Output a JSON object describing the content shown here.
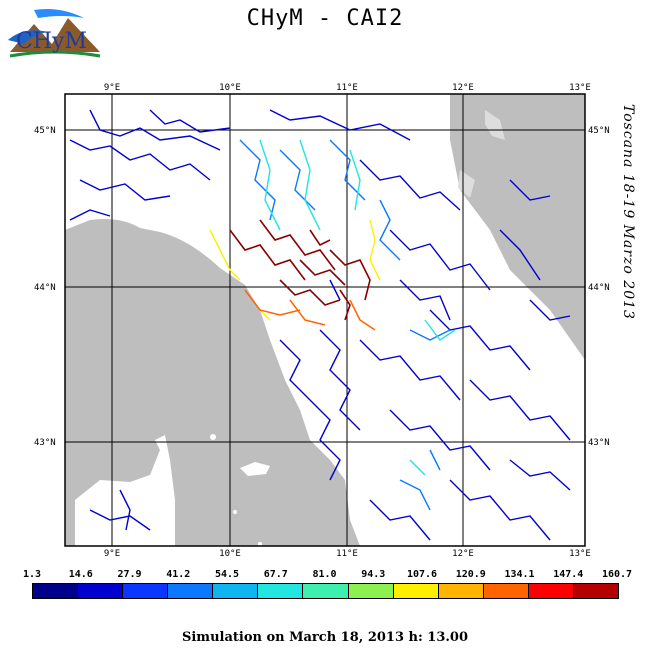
{
  "title": "CHyM  -  CAI2",
  "logo": {
    "text": "CHyM"
  },
  "side_label": "Toscana 18-19 Marzo 2013",
  "footer": "Simulation on March 18, 2013 h: 13.00",
  "map": {
    "lon_labels": [
      "9°E",
      "10°E",
      "11°E",
      "12°E",
      "13°E"
    ],
    "lat_labels": [
      "45°N",
      "44°N",
      "43°N"
    ],
    "land_color": "#ffffff",
    "sea_color": "#bebebe"
  },
  "colorbar": {
    "ticks": [
      "1.3",
      "14.6",
      "27.9",
      "41.2",
      "54.5",
      "67.7",
      "81.0",
      "94.3",
      "107.6",
      "120.9",
      "134.1",
      "147.4",
      "160.7"
    ],
    "colors": [
      "#00008b",
      "#0000d0",
      "#0a36ff",
      "#0a78ff",
      "#10b4f0",
      "#22e6e0",
      "#3cf0b0",
      "#8cf050",
      "#fff000",
      "#ffb400",
      "#ff6400",
      "#ff0000",
      "#b40000"
    ]
  }
}
